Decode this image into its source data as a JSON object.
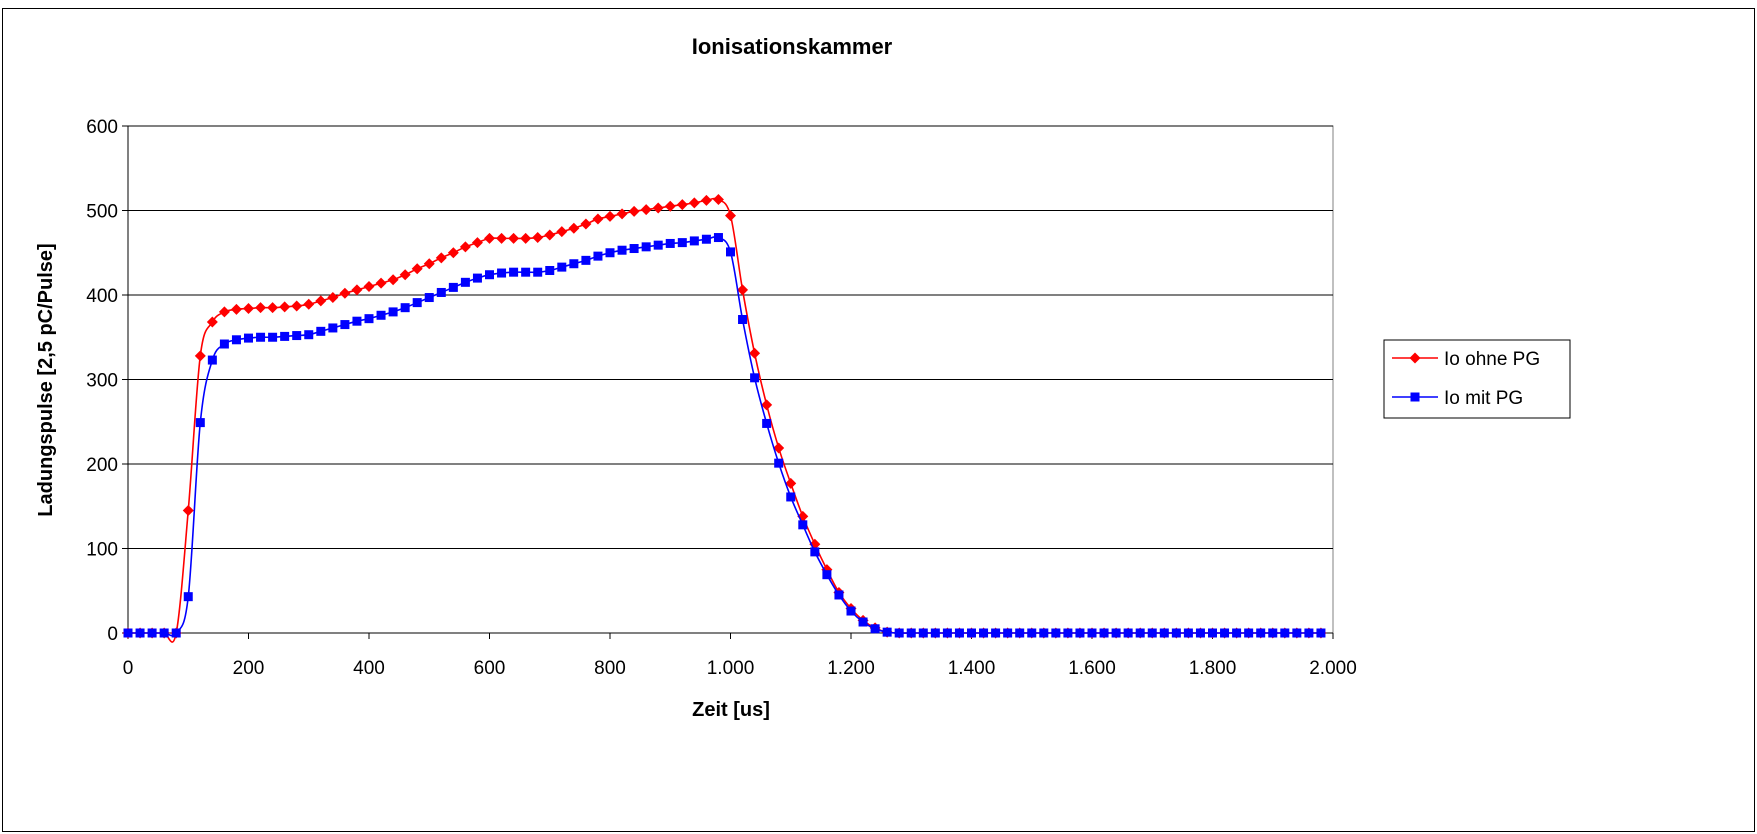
{
  "chart_data": {
    "type": "line",
    "title": "Ionisationskammer",
    "xlabel": "Zeit [us]",
    "ylabel": "Ladungspulse [2,5 pC/Pulse]",
    "xlim": [
      0,
      2000
    ],
    "ylim": [
      0,
      600
    ],
    "x_ticks": [
      0,
      200,
      400,
      600,
      800,
      1000,
      1200,
      1400,
      1600,
      1800,
      2000
    ],
    "x_tick_labels": [
      "0",
      "200",
      "400",
      "600",
      "800",
      "1.000",
      "1.200",
      "1.400",
      "1.600",
      "1.800",
      "2.000"
    ],
    "y_ticks": [
      0,
      100,
      200,
      300,
      400,
      500,
      600
    ],
    "y_tick_labels": [
      "0",
      "100",
      "200",
      "300",
      "400",
      "500",
      "600"
    ],
    "grid": "horizontal",
    "legend_position": "right",
    "series": [
      {
        "name": "Io ohne PG",
        "color": "#ff0000",
        "marker": "diamond",
        "points": [
          [
            0,
            0
          ],
          [
            20,
            0
          ],
          [
            40,
            0
          ],
          [
            60,
            0
          ],
          [
            80,
            0
          ],
          [
            100,
            145
          ],
          [
            120,
            328
          ],
          [
            140,
            368
          ],
          [
            160,
            380
          ],
          [
            180,
            383
          ],
          [
            200,
            384
          ],
          [
            220,
            385
          ],
          [
            240,
            385
          ],
          [
            260,
            386
          ],
          [
            280,
            387
          ],
          [
            300,
            389
          ],
          [
            320,
            393
          ],
          [
            340,
            397
          ],
          [
            360,
            402
          ],
          [
            380,
            406
          ],
          [
            400,
            410
          ],
          [
            420,
            414
          ],
          [
            440,
            418
          ],
          [
            460,
            424
          ],
          [
            480,
            431
          ],
          [
            500,
            437
          ],
          [
            520,
            444
          ],
          [
            540,
            450
          ],
          [
            560,
            457
          ],
          [
            580,
            462
          ],
          [
            600,
            467
          ],
          [
            620,
            467
          ],
          [
            640,
            467
          ],
          [
            660,
            467
          ],
          [
            680,
            468
          ],
          [
            700,
            471
          ],
          [
            720,
            475
          ],
          [
            740,
            479
          ],
          [
            760,
            484
          ],
          [
            780,
            490
          ],
          [
            800,
            493
          ],
          [
            820,
            496
          ],
          [
            840,
            499
          ],
          [
            860,
            501
          ],
          [
            880,
            503
          ],
          [
            900,
            505
          ],
          [
            920,
            507
          ],
          [
            940,
            509
          ],
          [
            960,
            512
          ],
          [
            980,
            513
          ],
          [
            1000,
            494
          ],
          [
            1020,
            406
          ],
          [
            1040,
            331
          ],
          [
            1060,
            270
          ],
          [
            1080,
            219
          ],
          [
            1100,
            177
          ],
          [
            1120,
            138
          ],
          [
            1140,
            105
          ],
          [
            1160,
            75
          ],
          [
            1180,
            48
          ],
          [
            1200,
            29
          ],
          [
            1220,
            15
          ],
          [
            1240,
            6
          ],
          [
            1260,
            1
          ],
          [
            1280,
            0
          ],
          [
            1300,
            0
          ],
          [
            1320,
            0
          ],
          [
            1340,
            0
          ],
          [
            1360,
            0
          ],
          [
            1380,
            0
          ],
          [
            1400,
            0
          ],
          [
            1420,
            0
          ],
          [
            1440,
            0
          ],
          [
            1460,
            0
          ],
          [
            1480,
            0
          ],
          [
            1500,
            0
          ],
          [
            1520,
            0
          ],
          [
            1540,
            0
          ],
          [
            1560,
            0
          ],
          [
            1580,
            0
          ],
          [
            1600,
            0
          ],
          [
            1620,
            0
          ],
          [
            1640,
            0
          ],
          [
            1660,
            0
          ],
          [
            1680,
            0
          ],
          [
            1700,
            0
          ],
          [
            1720,
            0
          ],
          [
            1740,
            0
          ],
          [
            1760,
            0
          ],
          [
            1780,
            0
          ],
          [
            1800,
            0
          ],
          [
            1820,
            0
          ],
          [
            1840,
            0
          ],
          [
            1860,
            0
          ],
          [
            1880,
            0
          ],
          [
            1900,
            0
          ],
          [
            1920,
            0
          ],
          [
            1940,
            0
          ],
          [
            1960,
            0
          ],
          [
            1980,
            0
          ]
        ]
      },
      {
        "name": "Io mit PG",
        "color": "#0000ff",
        "marker": "square",
        "points": [
          [
            0,
            0
          ],
          [
            20,
            0
          ],
          [
            40,
            0
          ],
          [
            60,
            0
          ],
          [
            80,
            0
          ],
          [
            100,
            43
          ],
          [
            120,
            249
          ],
          [
            140,
            323
          ],
          [
            160,
            342
          ],
          [
            180,
            347
          ],
          [
            200,
            349
          ],
          [
            220,
            350
          ],
          [
            240,
            350
          ],
          [
            260,
            351
          ],
          [
            280,
            352
          ],
          [
            300,
            353
          ],
          [
            320,
            357
          ],
          [
            340,
            361
          ],
          [
            360,
            365
          ],
          [
            380,
            369
          ],
          [
            400,
            372
          ],
          [
            420,
            376
          ],
          [
            440,
            380
          ],
          [
            460,
            385
          ],
          [
            480,
            391
          ],
          [
            500,
            397
          ],
          [
            520,
            403
          ],
          [
            540,
            409
          ],
          [
            560,
            415
          ],
          [
            580,
            420
          ],
          [
            600,
            424
          ],
          [
            620,
            426
          ],
          [
            640,
            427
          ],
          [
            660,
            427
          ],
          [
            680,
            427
          ],
          [
            700,
            429
          ],
          [
            720,
            433
          ],
          [
            740,
            437
          ],
          [
            760,
            441
          ],
          [
            780,
            446
          ],
          [
            800,
            450
          ],
          [
            820,
            453
          ],
          [
            840,
            455
          ],
          [
            860,
            457
          ],
          [
            880,
            459
          ],
          [
            900,
            461
          ],
          [
            920,
            462
          ],
          [
            940,
            464
          ],
          [
            960,
            466
          ],
          [
            980,
            468
          ],
          [
            1000,
            451
          ],
          [
            1020,
            371
          ],
          [
            1040,
            302
          ],
          [
            1060,
            248
          ],
          [
            1080,
            201
          ],
          [
            1100,
            161
          ],
          [
            1120,
            128
          ],
          [
            1140,
            96
          ],
          [
            1160,
            69
          ],
          [
            1180,
            45
          ],
          [
            1200,
            26
          ],
          [
            1220,
            13
          ],
          [
            1240,
            5
          ],
          [
            1260,
            1
          ],
          [
            1280,
            0
          ],
          [
            1300,
            0
          ],
          [
            1320,
            0
          ],
          [
            1340,
            0
          ],
          [
            1360,
            0
          ],
          [
            1380,
            0
          ],
          [
            1400,
            0
          ],
          [
            1420,
            0
          ],
          [
            1440,
            0
          ],
          [
            1460,
            0
          ],
          [
            1480,
            0
          ],
          [
            1500,
            0
          ],
          [
            1520,
            0
          ],
          [
            1540,
            0
          ],
          [
            1560,
            0
          ],
          [
            1580,
            0
          ],
          [
            1600,
            0
          ],
          [
            1620,
            0
          ],
          [
            1640,
            0
          ],
          [
            1660,
            0
          ],
          [
            1680,
            0
          ],
          [
            1700,
            0
          ],
          [
            1720,
            0
          ],
          [
            1740,
            0
          ],
          [
            1760,
            0
          ],
          [
            1780,
            0
          ],
          [
            1800,
            0
          ],
          [
            1820,
            0
          ],
          [
            1840,
            0
          ],
          [
            1860,
            0
          ],
          [
            1880,
            0
          ],
          [
            1900,
            0
          ],
          [
            1920,
            0
          ],
          [
            1940,
            0
          ],
          [
            1960,
            0
          ],
          [
            1980,
            0
          ]
        ]
      }
    ]
  }
}
